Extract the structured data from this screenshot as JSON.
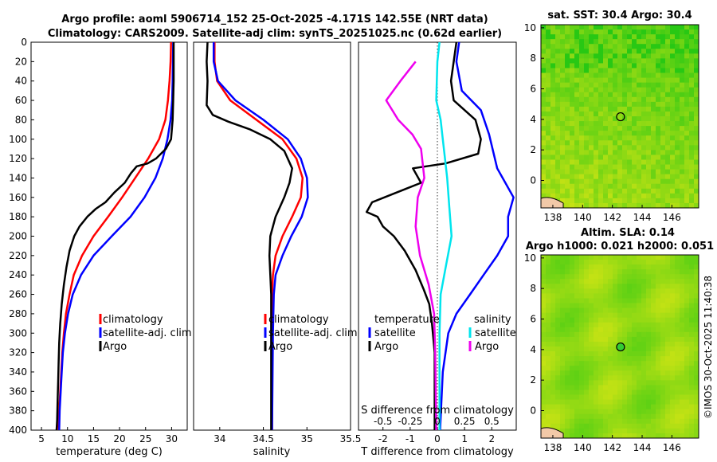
{
  "header": {
    "title_line1": "Argo profile: aoml 5906714_152 25-Oct-2025 -4.171S 142.55E (NRT data)",
    "title_line2": "Climatology: CARS2009. Satellite-adj clim: synTS_20251025.nc (0.62d earlier)"
  },
  "colors": {
    "climatology": "#ff0000",
    "satellite": "#0000ff",
    "argo": "#000000",
    "salinity_satellite": "#00e5ee",
    "salinity_argo": "#ee00ee"
  },
  "chart_data": [
    {
      "type": "line",
      "name": "temperature-profile",
      "xlabel": "temperature (deg C)",
      "ylabel": "depth",
      "xlim": [
        3,
        33
      ],
      "ylim": [
        0,
        400
      ],
      "xticks": [
        "5",
        "10",
        "15",
        "20",
        "25",
        "30"
      ],
      "yticks": [
        "0",
        "20",
        "40",
        "60",
        "80",
        "100",
        "120",
        "140",
        "160",
        "180",
        "200",
        "220",
        "240",
        "260",
        "280",
        "300",
        "320",
        "340",
        "360",
        "380",
        "400"
      ],
      "legend": [
        "climatology",
        "satellite-adj. clim",
        "Argo"
      ],
      "series": [
        {
          "name": "climatology",
          "color": "#ff0000",
          "points": [
            [
              29.9,
              0
            ],
            [
              29.8,
              20
            ],
            [
              29.6,
              40
            ],
            [
              29.3,
              60
            ],
            [
              28.8,
              80
            ],
            [
              27.6,
              100
            ],
            [
              25.5,
              120
            ],
            [
              23.0,
              140
            ],
            [
              20.5,
              160
            ],
            [
              17.8,
              180
            ],
            [
              15.0,
              200
            ],
            [
              12.8,
              220
            ],
            [
              11.2,
              240
            ],
            [
              10.4,
              260
            ],
            [
              9.7,
              280
            ],
            [
              9.3,
              300
            ],
            [
              9.0,
              320
            ],
            [
              8.8,
              340
            ],
            [
              8.6,
              360
            ],
            [
              8.4,
              380
            ],
            [
              8.3,
              400
            ]
          ]
        },
        {
          "name": "satellite-adj. clim",
          "color": "#0000ff",
          "points": [
            [
              30.3,
              0
            ],
            [
              30.2,
              40
            ],
            [
              30.1,
              60
            ],
            [
              29.8,
              80
            ],
            [
              29.2,
              100
            ],
            [
              28.3,
              120
            ],
            [
              26.9,
              140
            ],
            [
              24.8,
              160
            ],
            [
              22.1,
              180
            ],
            [
              18.5,
              200
            ],
            [
              15.0,
              220
            ],
            [
              12.6,
              240
            ],
            [
              11.0,
              260
            ],
            [
              10.1,
              280
            ],
            [
              9.5,
              300
            ],
            [
              9.1,
              320
            ],
            [
              8.9,
              340
            ],
            [
              8.7,
              360
            ],
            [
              8.5,
              380
            ],
            [
              8.4,
              400
            ]
          ]
        },
        {
          "name": "Argo",
          "color": "#000000",
          "points": [
            [
              30.4,
              0
            ],
            [
              30.4,
              40
            ],
            [
              30.3,
              60
            ],
            [
              30.2,
              80
            ],
            [
              29.9,
              100
            ],
            [
              28.9,
              110
            ],
            [
              27.0,
              120
            ],
            [
              25.4,
              125
            ],
            [
              23.3,
              128
            ],
            [
              22.2,
              135
            ],
            [
              21.0,
              145
            ],
            [
              19.0,
              155
            ],
            [
              17.3,
              165
            ],
            [
              15.4,
              172
            ],
            [
              13.8,
              180
            ],
            [
              12.3,
              190
            ],
            [
              11.3,
              200
            ],
            [
              10.4,
              215
            ],
            [
              9.8,
              232
            ],
            [
              9.3,
              250
            ],
            [
              8.9,
              270
            ],
            [
              8.6,
              290
            ],
            [
              8.4,
              310
            ],
            [
              8.3,
              330
            ],
            [
              8.2,
              350
            ],
            [
              8.1,
              370
            ],
            [
              8.0,
              390
            ],
            [
              7.9,
              400
            ]
          ]
        }
      ]
    },
    {
      "type": "line",
      "name": "salinity-profile",
      "xlabel": "salinity",
      "xlim": [
        33.7,
        35.5
      ],
      "ylim": [
        0,
        400
      ],
      "xticks": [
        "34",
        "34.5",
        "35",
        "35.5"
      ],
      "legend": [
        "climatology",
        "satellite-adj. clim",
        "Argo"
      ],
      "series": [
        {
          "name": "climatology",
          "color": "#ff0000",
          "points": [
            [
              33.94,
              0
            ],
            [
              33.94,
              20
            ],
            [
              33.97,
              40
            ],
            [
              34.12,
              60
            ],
            [
              34.42,
              80
            ],
            [
              34.72,
              100
            ],
            [
              34.88,
              120
            ],
            [
              34.95,
              140
            ],
            [
              34.93,
              160
            ],
            [
              34.83,
              180
            ],
            [
              34.72,
              200
            ],
            [
              34.64,
              220
            ],
            [
              34.61,
              240
            ],
            [
              34.6,
              260
            ],
            [
              34.6,
              300
            ],
            [
              34.6,
              400
            ]
          ]
        },
        {
          "name": "satellite-adj. clim",
          "color": "#0000ff",
          "points": [
            [
              33.93,
              0
            ],
            [
              33.93,
              20
            ],
            [
              33.98,
              40
            ],
            [
              34.18,
              60
            ],
            [
              34.5,
              80
            ],
            [
              34.78,
              100
            ],
            [
              34.93,
              120
            ],
            [
              35.0,
              140
            ],
            [
              35.01,
              160
            ],
            [
              34.94,
              180
            ],
            [
              34.82,
              200
            ],
            [
              34.72,
              220
            ],
            [
              34.64,
              240
            ],
            [
              34.62,
              260
            ],
            [
              34.61,
              300
            ],
            [
              34.6,
              400
            ]
          ]
        },
        {
          "name": "Argo",
          "color": "#000000",
          "points": [
            [
              33.86,
              0
            ],
            [
              33.85,
              20
            ],
            [
              33.86,
              40
            ],
            [
              33.85,
              65
            ],
            [
              33.92,
              75
            ],
            [
              34.1,
              82
            ],
            [
              34.35,
              90
            ],
            [
              34.58,
              100
            ],
            [
              34.74,
              112
            ],
            [
              34.83,
              130
            ],
            [
              34.8,
              145
            ],
            [
              34.74,
              160
            ],
            [
              34.64,
              180
            ],
            [
              34.58,
              200
            ],
            [
              34.57,
              220
            ],
            [
              34.58,
              240
            ],
            [
              34.59,
              260
            ],
            [
              34.59,
              300
            ],
            [
              34.59,
              400
            ]
          ]
        }
      ]
    },
    {
      "type": "line",
      "name": "difference-from-climatology",
      "xlabel": "T difference from climatology",
      "top_axis_label": "S difference from climatology",
      "xlim": [
        -2.9,
        2.9
      ],
      "ylim": [
        0,
        400
      ],
      "xticks": [
        "-2",
        "-1",
        "0",
        "1",
        "2"
      ],
      "top_ticks": [
        "-0.5",
        "-0.25",
        "0",
        "0.25",
        "0.5"
      ],
      "legend_temperature_header": "temperature",
      "legend_salinity_header": "salinity",
      "legend": [
        "satellite",
        "Argo",
        "satellite",
        "Argo"
      ],
      "series": [
        {
          "name": "temperature satellite",
          "color": "#0000ff",
          "points": [
            [
              0.8,
              0
            ],
            [
              0.7,
              20
            ],
            [
              0.9,
              50
            ],
            [
              1.6,
              70
            ],
            [
              1.9,
              95
            ],
            [
              2.2,
              130
            ],
            [
              2.8,
              160
            ],
            [
              2.6,
              180
            ],
            [
              2.6,
              200
            ],
            [
              2.2,
              220
            ],
            [
              1.7,
              240
            ],
            [
              1.2,
              260
            ],
            [
              0.7,
              280
            ],
            [
              0.4,
              300
            ],
            [
              0.2,
              340
            ],
            [
              0.1,
              400
            ]
          ]
        },
        {
          "name": "temperature Argo",
          "color": "#000000",
          "points": [
            [
              0.7,
              0
            ],
            [
              0.6,
              20
            ],
            [
              0.5,
              40
            ],
            [
              0.6,
              60
            ],
            [
              1.4,
              80
            ],
            [
              1.6,
              100
            ],
            [
              1.5,
              115
            ],
            [
              0.3,
              125
            ],
            [
              -0.9,
              130
            ],
            [
              -0.6,
              145
            ],
            [
              -1.5,
              155
            ],
            [
              -2.4,
              165
            ],
            [
              -2.6,
              175
            ],
            [
              -2.2,
              180
            ],
            [
              -2.0,
              190
            ],
            [
              -1.6,
              200
            ],
            [
              -1.2,
              215
            ],
            [
              -0.8,
              235
            ],
            [
              -0.5,
              255
            ],
            [
              -0.3,
              270
            ],
            [
              -0.2,
              290
            ],
            [
              -0.1,
              320
            ],
            [
              -0.1,
              400
            ]
          ]
        },
        {
          "name": "salinity satellite",
          "color": "#00e5ee",
          "points": [
            [
              0.02,
              0
            ],
            [
              0.0,
              20
            ],
            [
              -0.01,
              60
            ],
            [
              0.03,
              80
            ],
            [
              0.05,
              100
            ],
            [
              0.09,
              140
            ],
            [
              0.11,
              170
            ],
            [
              0.13,
              200
            ],
            [
              0.08,
              230
            ],
            [
              0.03,
              260
            ],
            [
              0.02,
              300
            ],
            [
              0.02,
              400
            ]
          ]
        },
        {
          "name": "salinity Argo",
          "color": "#ee00ee",
          "points": [
            [
              -0.2,
              20
            ],
            [
              -0.34,
              40
            ],
            [
              -0.47,
              60
            ],
            [
              -0.36,
              80
            ],
            [
              -0.23,
              95
            ],
            [
              -0.15,
              110
            ],
            [
              -0.12,
              140
            ],
            [
              -0.18,
              160
            ],
            [
              -0.2,
              190
            ],
            [
              -0.16,
              220
            ],
            [
              -0.08,
              250
            ],
            [
              -0.03,
              280
            ],
            [
              -0.02,
              320
            ],
            [
              -0.01,
              400
            ]
          ]
        }
      ]
    },
    {
      "type": "heatmap",
      "name": "sat-sst-map",
      "title": "sat. SST: 30.4 Argo: 30.4",
      "xlim": [
        137.2,
        147.8
      ],
      "ylim": [
        -1.8,
        10.2
      ],
      "xticks": [
        "138",
        "140",
        "142",
        "144",
        "146"
      ],
      "yticks": [
        "10",
        "8",
        "6",
        "4",
        "2",
        "0"
      ],
      "marker": [
        142.55,
        4.17
      ]
    },
    {
      "type": "heatmap",
      "name": "altim-sla-map",
      "title": "Altim. SLA: 0.14",
      "subtitle": "Argo h1000: 0.021 h2000: 0.051",
      "xlim": [
        137.2,
        147.8
      ],
      "ylim": [
        -1.8,
        10.2
      ],
      "xticks": [
        "138",
        "140",
        "142",
        "144",
        "146"
      ],
      "yticks": [
        "10",
        "8",
        "6",
        "4",
        "2",
        "0"
      ],
      "marker": [
        142.55,
        4.17
      ]
    }
  ],
  "footer": {
    "credit": "©IMOS 30-Oct-2025 11:40:38"
  }
}
